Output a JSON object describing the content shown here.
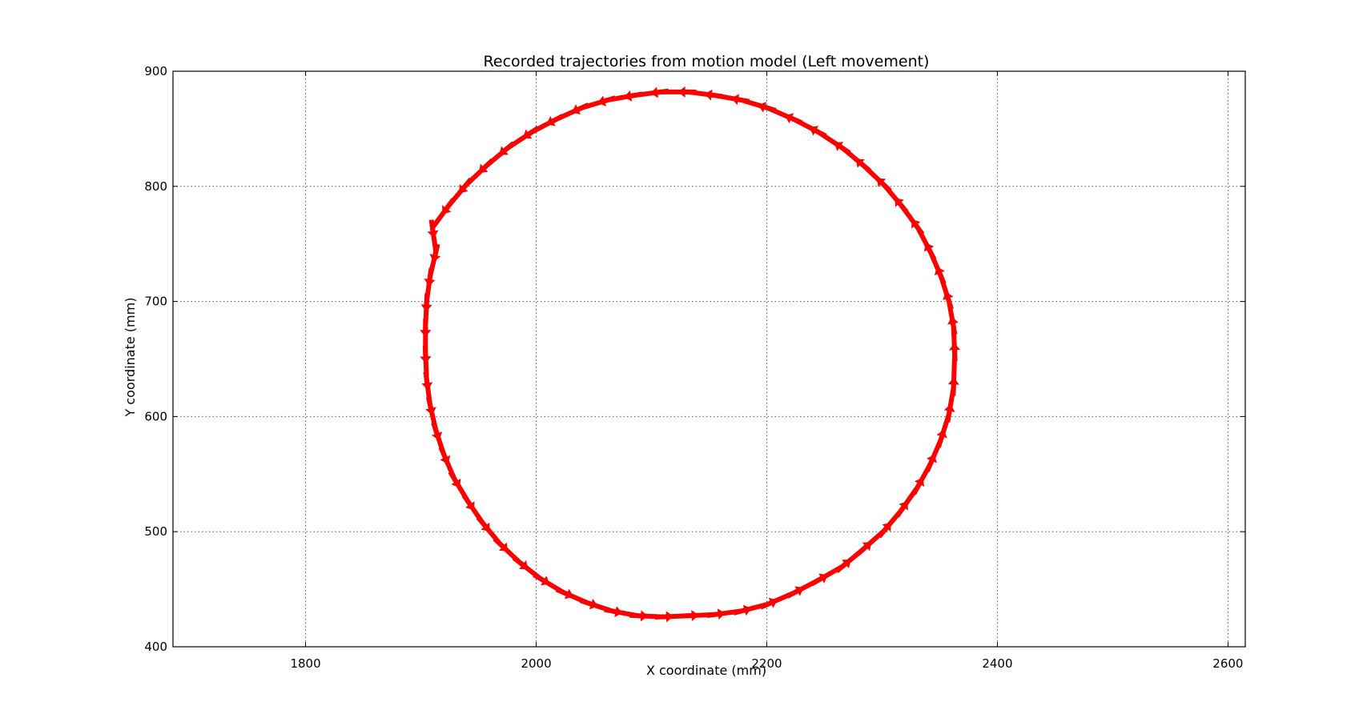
{
  "chart_data": {
    "type": "scatter",
    "title": "Recorded trajectories from motion model (Left movement)",
    "xlabel": "X coordinate (mm)",
    "ylabel": "Y coordinate (mm)",
    "xlim": [
      1685,
      2615
    ],
    "ylim": [
      400,
      900
    ],
    "xticks": [
      1800,
      2000,
      2200,
      2400,
      2600
    ],
    "yticks": [
      400,
      500,
      600,
      700,
      800,
      900
    ],
    "grid": true,
    "marker": "arrow",
    "color": "#ff0000",
    "series": [
      {
        "points": [
          [
            2363,
            655
          ],
          [
            2362,
            678
          ],
          [
            2358,
            700
          ],
          [
            2351,
            722
          ],
          [
            2342,
            743
          ],
          [
            2331,
            764
          ],
          [
            2317,
            783
          ],
          [
            2302,
            801
          ],
          [
            2284,
            818
          ],
          [
            2266,
            833
          ],
          [
            2245,
            847
          ],
          [
            2224,
            858
          ],
          [
            2201,
            868
          ],
          [
            2178,
            875
          ],
          [
            2155,
            879
          ],
          [
            2132,
            882
          ],
          [
            2108,
            882
          ],
          [
            2085,
            879
          ],
          [
            2062,
            875
          ],
          [
            2039,
            868
          ],
          [
            2017,
            858
          ],
          [
            1996,
            847
          ],
          [
            1975,
            833
          ],
          [
            1957,
            818
          ],
          [
            1939,
            801
          ],
          [
            1924,
            783
          ],
          [
            1910,
            764
          ],
          [
            1913,
            743
          ],
          [
            1908,
            722
          ],
          [
            1905,
            700
          ],
          [
            1904,
            678
          ],
          [
            1904,
            655
          ],
          [
            1905,
            632
          ],
          [
            1908,
            610
          ],
          [
            1913,
            588
          ],
          [
            1920,
            567
          ],
          [
            1929,
            546
          ],
          [
            1941,
            526
          ],
          [
            1954,
            507
          ],
          [
            1969,
            489
          ],
          [
            1986,
            473
          ],
          [
            2004,
            459
          ],
          [
            2024,
            447
          ],
          [
            2045,
            438
          ],
          [
            2066,
            431
          ],
          [
            2088,
            427
          ],
          [
            2110,
            426
          ],
          [
            2132,
            427
          ],
          [
            2155,
            428
          ],
          [
            2178,
            431
          ],
          [
            2201,
            437
          ],
          [
            2224,
            447
          ],
          [
            2245,
            458
          ],
          [
            2266,
            470
          ],
          [
            2284,
            485
          ],
          [
            2302,
            501
          ],
          [
            2317,
            519
          ],
          [
            2331,
            539
          ],
          [
            2342,
            559
          ],
          [
            2351,
            580
          ],
          [
            2358,
            602
          ],
          [
            2362,
            625
          ]
        ]
      }
    ]
  }
}
